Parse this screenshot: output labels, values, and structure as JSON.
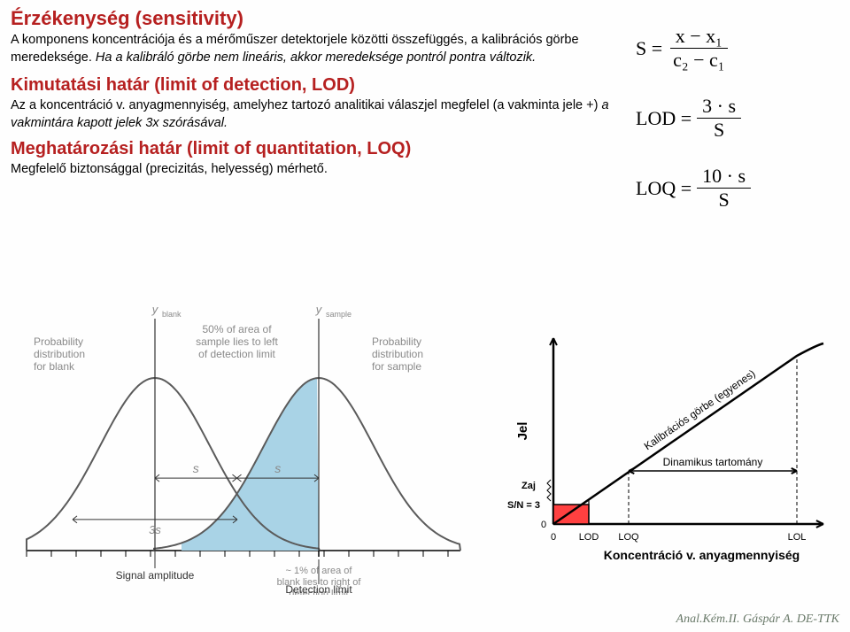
{
  "text": {
    "heading1": "Érzékenység (sensitivity)",
    "para1a": "A komponens koncentrációja és a mérőműszer detektorjele közötti összefüggés, a kalibrációs görbe meredeksége. ",
    "para1b": "Ha a kalibráló görbe nem lineáris, akkor meredeksége pontról pontra változik.",
    "heading2": "Kimutatási határ (limit of detection, LOD)",
    "para2a": "Az a koncentráció v. anyagmennyiség, amelyhez tartozó analitikai válaszjel megfelel (a vakminta jele +) ",
    "para2b": "a vakmintára kapott jelek 3x szórásával.",
    "heading3": "Meghatározási határ (limit of quantitation, LOQ)",
    "para3": "Megfelelő biztonsággal (precizitás, helyesség) mérhető."
  },
  "colors": {
    "headingColor": "#b62020",
    "bodyColor": "#1a1a1a",
    "gaussFill": "#a9d3e6",
    "gaussStroke": "#5b5b5b",
    "gaussMuted": "#8a8a8a",
    "lodBox": "#ff4040",
    "footerColor": "#6a7a6a"
  },
  "formulas": {
    "S": {
      "lhs": "S =",
      "num": "x − x₁",
      "den": "c₂ − c₁"
    },
    "LOD": {
      "lhs": "LOD =",
      "num": "3 · s",
      "den": "S"
    },
    "LOQ": {
      "lhs": "LOQ =",
      "num": "10 · s",
      "den": "S"
    }
  },
  "leftFigure": {
    "labels": {
      "yblank": "y_blank",
      "ysample": "y_sample",
      "probBlank1": "Probability",
      "probBlank2": "distribution",
      "probBlank3": "for blank",
      "fifty1": "50% of area of",
      "fifty2": "sample lies to left",
      "fifty3": "of detection limit",
      "probSamp1": "Probability",
      "probSamp2": "distribution",
      "probSamp3": "for sample",
      "s": "s",
      "threeS": "3s",
      "one1": "~ 1% of area of",
      "one2": "blank lies to right of",
      "one3": "detection limit",
      "xaxis": "Signal amplitude",
      "detLim": "Detection limit"
    },
    "gauss": {
      "mu1": 175,
      "mu2": 360,
      "sigma": 62,
      "baseline": 280,
      "height": 195,
      "xstart": 30,
      "xend": 520
    }
  },
  "rightFigure": {
    "labels": {
      "ylabel": "Jel",
      "zaj": "Zaj",
      "sn3": "S/N = 3",
      "zero_y": "0",
      "zero_x": "0",
      "lod": "LOD",
      "loq": "LOQ",
      "lol": "LOL",
      "xaxis": "Koncentráció v. anyagmennyiség",
      "kalib": "Kalibrációs görbe (egyenes)",
      "dinamikus": "Dinamikus tartomány"
    },
    "plot": {
      "originX": 75,
      "originY": 230,
      "xmax": 370,
      "ymax": 20,
      "lodX": 115,
      "loqX": 160,
      "lolX": 350,
      "boxH": 22,
      "lineEndX": 350,
      "lineEndY": 40,
      "curveCtrlX": 372,
      "curveCtrlY": 28,
      "curveEndX": 380,
      "curveEndY": 26
    }
  },
  "footer": "Anal.Kém.II. Gáspár A. DE-TTK"
}
